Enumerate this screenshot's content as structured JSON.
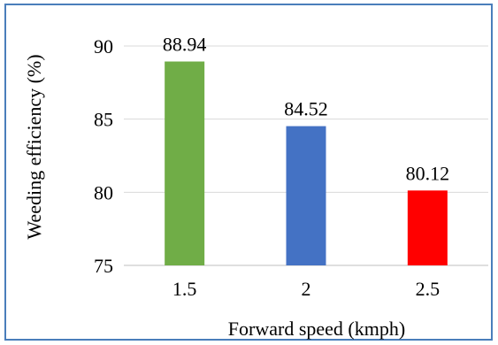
{
  "chart_data": {
    "type": "bar",
    "categories": [
      "1.5",
      "2",
      "2.5"
    ],
    "values": [
      88.94,
      84.52,
      80.12
    ],
    "data_labels": [
      "88.94",
      "84.52",
      "80.12"
    ],
    "bar_colors": [
      "#70ad47",
      "#4472c4",
      "#ff0000"
    ],
    "xlabel": "Forward speed (kmph)",
    "ylabel": "Weeding efficiency (%)",
    "ylim": [
      75,
      90
    ],
    "yticks": [
      75,
      80,
      85,
      90
    ],
    "ytick_labels": [
      "75",
      "80",
      "85",
      "90"
    ],
    "grid": true,
    "legend": "none"
  },
  "colors": {
    "border": "#4a7ebb",
    "grid": "#d9d9d9",
    "axis": "#bfbfbf"
  }
}
